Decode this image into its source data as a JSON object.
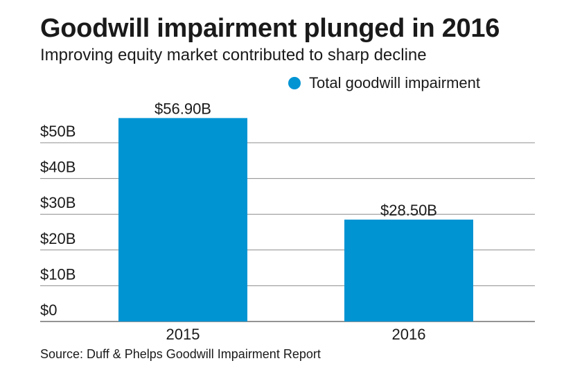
{
  "chart_data": {
    "type": "bar",
    "title": "Goodwill impairment plunged in 2016",
    "subtitle": "Improving equity market contributed to sharp decline",
    "categories": [
      "2015",
      "2016"
    ],
    "series": [
      {
        "name": "Total goodwill impairment",
        "values": [
          56.9,
          28.5
        ],
        "data_labels": [
          "$56.90B",
          "$28.50B"
        ]
      }
    ],
    "y_ticks": [
      0,
      10,
      20,
      30,
      40,
      50
    ],
    "y_tick_labels": [
      "$0",
      "$10B",
      "$20B",
      "$30B",
      "$40B",
      "$50B"
    ],
    "ylim": [
      0,
      60
    ],
    "grid": true,
    "legend_position": "top-right",
    "bar_color": "#0094d3",
    "grid_color": "#8c8c8c",
    "source": "Source: Duff & Phelps Goodwill Impairment Report"
  }
}
